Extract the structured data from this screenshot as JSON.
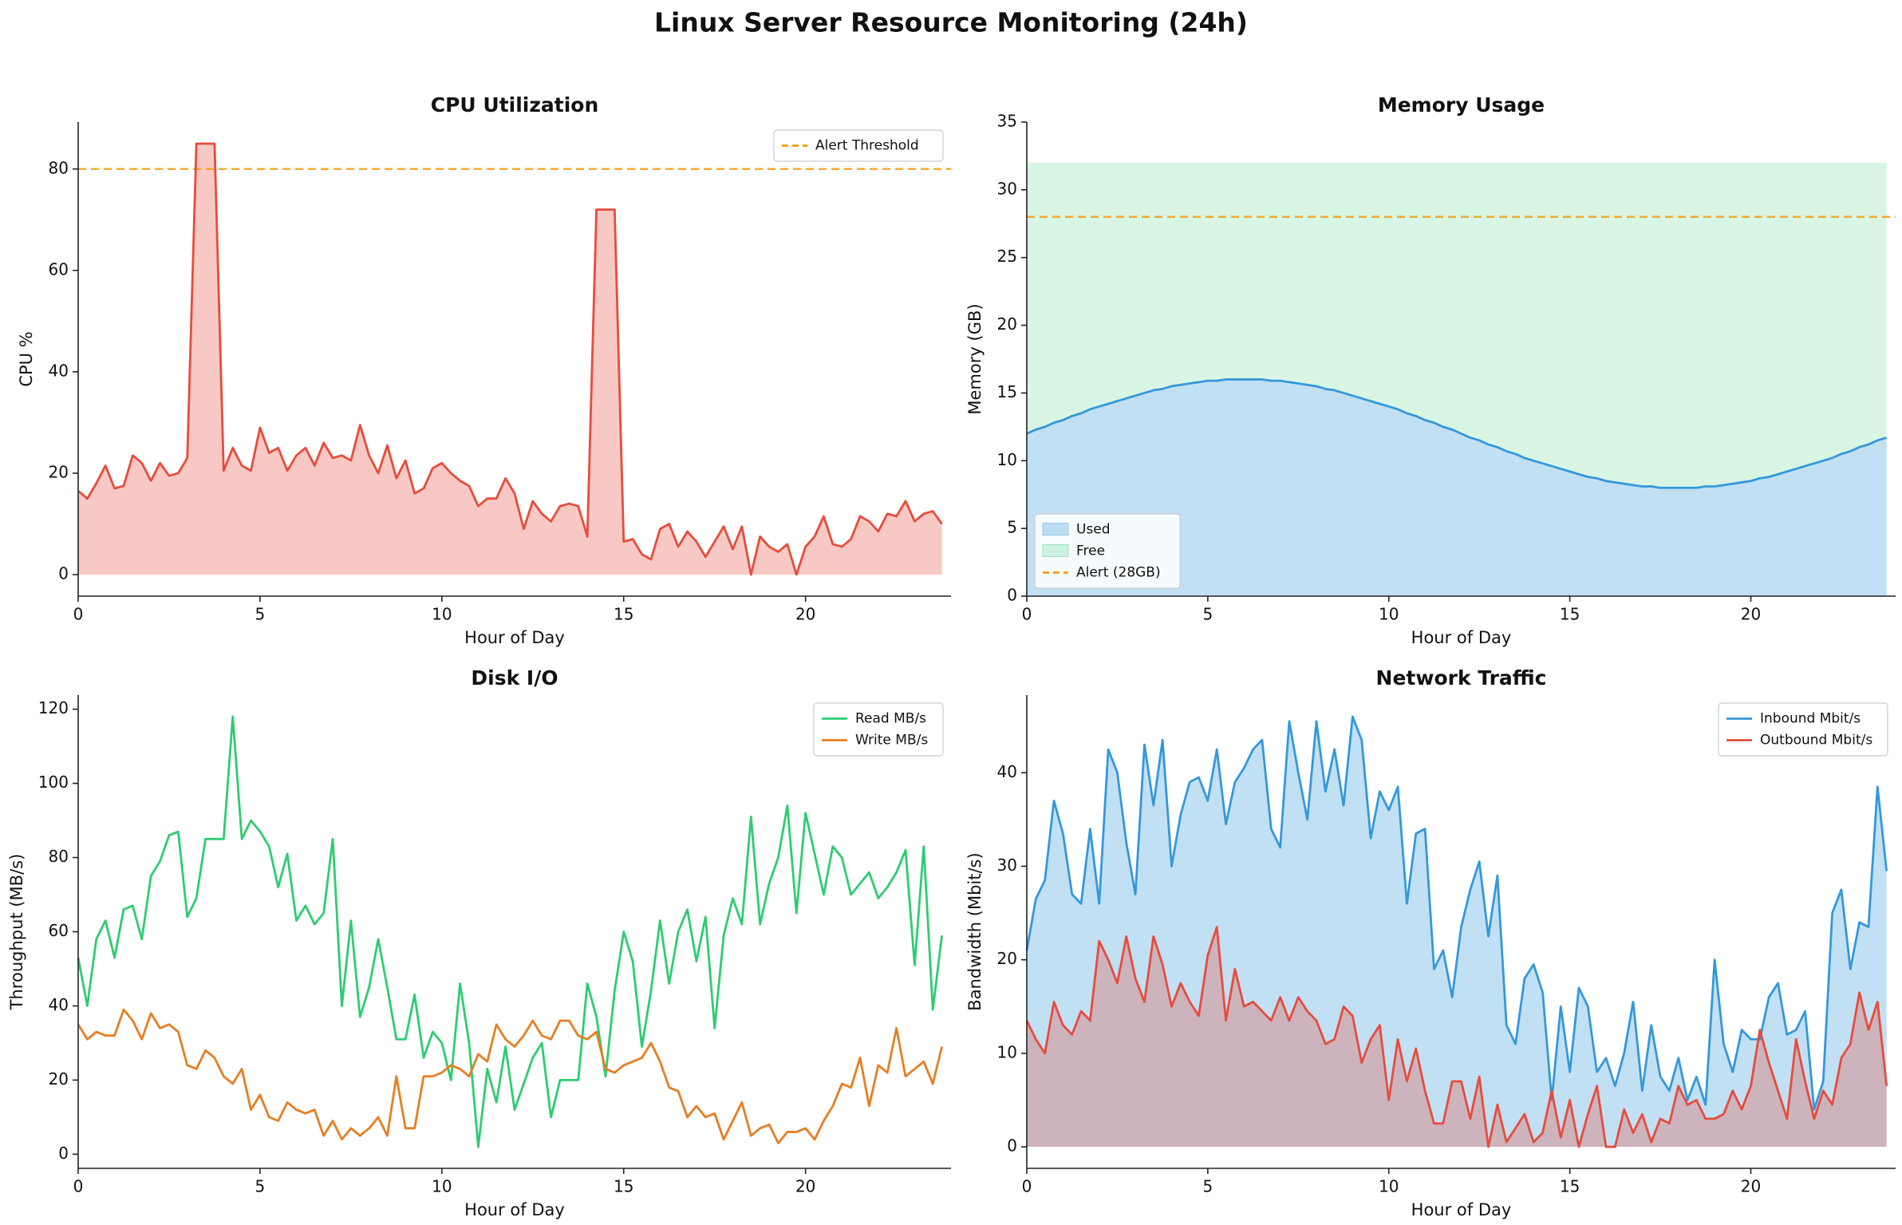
{
  "title": "Linux Server Resource Monitoring (24h)",
  "chart_data": [
    {
      "type": "line",
      "title": "CPU Utilization",
      "xlabel": "Hour of Day",
      "ylabel": "CPU %",
      "x": [
        0,
        0.25,
        0.5,
        0.75,
        1,
        1.25,
        1.5,
        1.75,
        2,
        2.25,
        2.5,
        2.75,
        3,
        3.25,
        3.5,
        3.75,
        4,
        4.25,
        4.5,
        4.75,
        5,
        5.25,
        5.5,
        5.75,
        6,
        6.25,
        6.5,
        6.75,
        7,
        7.25,
        7.5,
        7.75,
        8,
        8.25,
        8.5,
        8.75,
        9,
        9.25,
        9.5,
        9.75,
        10,
        10.25,
        10.5,
        10.75,
        11,
        11.25,
        11.5,
        11.75,
        12,
        12.25,
        12.5,
        12.75,
        13,
        13.25,
        13.5,
        13.75,
        14,
        14.25,
        14.5,
        14.75,
        15,
        15.25,
        15.5,
        15.75,
        16,
        16.25,
        16.5,
        16.75,
        17,
        17.25,
        17.5,
        17.75,
        18,
        18.25,
        18.5,
        18.75,
        19,
        19.25,
        19.5,
        19.75,
        20,
        20.25,
        20.5,
        20.75,
        21,
        21.25,
        21.5,
        21.75,
        22,
        22.25,
        22.5,
        22.75,
        23,
        23.25,
        23.5,
        23.75
      ],
      "series": [
        {
          "color": "#e74c3c",
          "fill": true,
          "values": [
            16.5,
            15,
            18,
            21.5,
            17,
            17.5,
            23.5,
            22,
            18.5,
            22,
            19.5,
            20,
            23,
            85,
            85,
            85,
            20.5,
            25,
            21.5,
            20.5,
            29,
            24,
            25,
            20.5,
            23.5,
            25,
            21.5,
            26,
            23,
            23.5,
            22.5,
            29.5,
            23.5,
            20,
            25.5,
            19,
            22.5,
            16,
            17,
            21,
            22,
            20,
            18.5,
            17.5,
            13.5,
            15,
            15,
            19,
            16,
            9,
            14.5,
            12,
            10.5,
            13.5,
            14,
            13.5,
            7.5,
            72,
            72,
            72,
            6.5,
            7,
            4,
            3,
            9,
            10,
            5.5,
            8.5,
            6.5,
            3.5,
            6.5,
            9.5,
            5,
            9.5,
            0,
            7.5,
            5.5,
            4.5,
            6,
            0,
            5.5,
            7.5,
            11.5,
            6,
            5.5,
            7,
            11.5,
            10.5,
            8.5,
            12,
            11.5,
            14.5,
            10.5,
            12,
            12.5,
            10
          ]
        }
      ],
      "hlines": [
        {
          "name": "Alert Threshold",
          "value": 80,
          "color": "#f39c12"
        }
      ],
      "xlim": [
        0,
        24
      ],
      "xticks": [
        0,
        5,
        10,
        15,
        20
      ],
      "ylim": [
        -4.25,
        89.25
      ],
      "yticks": [
        0,
        20,
        40,
        60,
        80
      ],
      "legend": "upper right"
    },
    {
      "type": "line",
      "title": "Memory Usage",
      "xlabel": "Hour of Day",
      "ylabel": "Memory (GB)",
      "x": [
        0,
        0.25,
        0.5,
        0.75,
        1,
        1.25,
        1.5,
        1.75,
        2,
        2.25,
        2.5,
        2.75,
        3,
        3.25,
        3.5,
        3.75,
        4,
        4.25,
        4.5,
        4.75,
        5,
        5.25,
        5.5,
        5.75,
        6,
        6.25,
        6.5,
        6.75,
        7,
        7.25,
        7.5,
        7.75,
        8,
        8.25,
        8.5,
        8.75,
        9,
        9.25,
        9.5,
        9.75,
        10,
        10.25,
        10.5,
        10.75,
        11,
        11.25,
        11.5,
        11.75,
        12,
        12.25,
        12.5,
        12.75,
        13,
        13.25,
        13.5,
        13.75,
        14,
        14.25,
        14.5,
        14.75,
        15,
        15.25,
        15.5,
        15.75,
        16,
        16.25,
        16.5,
        16.75,
        17,
        17.25,
        17.5,
        17.75,
        18,
        18.25,
        18.5,
        18.75,
        19,
        19.25,
        19.5,
        19.75,
        20,
        20.25,
        20.5,
        20.75,
        21,
        21.25,
        21.5,
        21.75,
        22,
        22.25,
        22.5,
        22.75,
        23,
        23.25,
        23.5,
        23.75
      ],
      "series": [
        {
          "name": "Used",
          "color": "#3498db",
          "fill": true,
          "legend_marker": "patch",
          "values": [
            12.0,
            12.3,
            12.5,
            12.8,
            13.0,
            13.3,
            13.5,
            13.8,
            14.0,
            14.2,
            14.4,
            14.6,
            14.8,
            15.0,
            15.2,
            15.3,
            15.5,
            15.6,
            15.7,
            15.8,
            15.9,
            15.9,
            16.0,
            16.0,
            16.0,
            16.0,
            16.0,
            15.9,
            15.9,
            15.8,
            15.7,
            15.6,
            15.5,
            15.3,
            15.2,
            15.0,
            14.8,
            14.6,
            14.4,
            14.2,
            14.0,
            13.8,
            13.5,
            13.3,
            13.0,
            12.8,
            12.5,
            12.3,
            12.0,
            11.7,
            11.5,
            11.2,
            11.0,
            10.7,
            10.5,
            10.2,
            10.0,
            9.8,
            9.6,
            9.4,
            9.2,
            9.0,
            8.8,
            8.7,
            8.5,
            8.4,
            8.3,
            8.2,
            8.1,
            8.1,
            8.0,
            8.0,
            8.0,
            8.0,
            8.0,
            8.1,
            8.1,
            8.2,
            8.3,
            8.4,
            8.5,
            8.7,
            8.8,
            9.0,
            9.2,
            9.4,
            9.6,
            9.8,
            10.0,
            10.2,
            10.5,
            10.7,
            11.0,
            11.2,
            11.5,
            11.7
          ]
        }
      ],
      "band": {
        "name": "Free",
        "color": "#2ecc71",
        "upper": 32
      },
      "hlines": [
        {
          "name": "Alert (28GB)",
          "value": 28,
          "color": "#f39c12"
        }
      ],
      "xlim": [
        0,
        24
      ],
      "xticks": [
        0,
        5,
        10,
        15,
        20
      ],
      "ylim": [
        0,
        35
      ],
      "yticks": [
        0,
        5,
        10,
        15,
        20,
        25,
        30,
        35
      ],
      "legend": "lower left"
    },
    {
      "type": "line",
      "title": "Disk I/O",
      "xlabel": "Hour of Day",
      "ylabel": "Throughput (MB/s)",
      "x": [
        0,
        0.25,
        0.5,
        0.75,
        1,
        1.25,
        1.5,
        1.75,
        2,
        2.25,
        2.5,
        2.75,
        3,
        3.25,
        3.5,
        3.75,
        4,
        4.25,
        4.5,
        4.75,
        5,
        5.25,
        5.5,
        5.75,
        6,
        6.25,
        6.5,
        6.75,
        7,
        7.25,
        7.5,
        7.75,
        8,
        8.25,
        8.5,
        8.75,
        9,
        9.25,
        9.5,
        9.75,
        10,
        10.25,
        10.5,
        10.75,
        11,
        11.25,
        11.5,
        11.75,
        12,
        12.25,
        12.5,
        12.75,
        13,
        13.25,
        13.5,
        13.75,
        14,
        14.25,
        14.5,
        14.75,
        15,
        15.25,
        15.5,
        15.75,
        16,
        16.25,
        16.5,
        16.75,
        17,
        17.25,
        17.5,
        17.75,
        18,
        18.25,
        18.5,
        18.75,
        19,
        19.25,
        19.5,
        19.75,
        20,
        20.25,
        20.5,
        20.75,
        21,
        21.25,
        21.5,
        21.75,
        22,
        22.25,
        22.5,
        22.75,
        23,
        23.25,
        23.5,
        23.75
      ],
      "series": [
        {
          "name": "Read MB/s",
          "color": "#2ecc71",
          "values": [
            53,
            40,
            58,
            63,
            53,
            66,
            67,
            58,
            75,
            79,
            86,
            87,
            64,
            69,
            85,
            85,
            85,
            118,
            85,
            90,
            87,
            83,
            72,
            81,
            63,
            67,
            62,
            65,
            85,
            40,
            63,
            37,
            45,
            58,
            45,
            31,
            31,
            43,
            26,
            33,
            30,
            20,
            46,
            30,
            2,
            23,
            14,
            29,
            12,
            19,
            26,
            30,
            10,
            20,
            20,
            20,
            46,
            37,
            21,
            44,
            60,
            52,
            29,
            44,
            63,
            46,
            60,
            66,
            52,
            64,
            34,
            59,
            69,
            62,
            91,
            62,
            73,
            80,
            94,
            65,
            92,
            81,
            70,
            83,
            80,
            70,
            73,
            76,
            69,
            72,
            76,
            82,
            51,
            83,
            39,
            59
          ]
        },
        {
          "name": "Write MB/s",
          "color": "#e67e22",
          "values": [
            35,
            31,
            33,
            32,
            32,
            39,
            36,
            31,
            38,
            34,
            35,
            33,
            24,
            23,
            28,
            26,
            21,
            19,
            23,
            12,
            16,
            10,
            9,
            14,
            12,
            11,
            12,
            5,
            9,
            4,
            7,
            5,
            7,
            10,
            5,
            21,
            7,
            7,
            21,
            21,
            22,
            24,
            23,
            21,
            27,
            25,
            35,
            31,
            29,
            32,
            36,
            32,
            31,
            36,
            36,
            32,
            31,
            33,
            23,
            22,
            24,
            25,
            26,
            30,
            25,
            18,
            17,
            10,
            13,
            10,
            11,
            4,
            9,
            14,
            5,
            7,
            8,
            3,
            6,
            6,
            7,
            4,
            9,
            13,
            19,
            18,
            26,
            13,
            24,
            22,
            34,
            21,
            23,
            25,
            19,
            29
          ]
        }
      ],
      "xlim": [
        0,
        24
      ],
      "xticks": [
        0,
        5,
        10,
        15,
        20
      ],
      "ylim": [
        -3.8,
        123.8
      ],
      "yticks": [
        0,
        20,
        40,
        60,
        80,
        100,
        120
      ],
      "legend": "upper right"
    },
    {
      "type": "line",
      "title": "Network Traffic",
      "xlabel": "Hour of Day",
      "ylabel": "Bandwidth (Mbit/s)",
      "x": [
        0,
        0.25,
        0.5,
        0.75,
        1,
        1.25,
        1.5,
        1.75,
        2,
        2.25,
        2.5,
        2.75,
        3,
        3.25,
        3.5,
        3.75,
        4,
        4.25,
        4.5,
        4.75,
        5,
        5.25,
        5.5,
        5.75,
        6,
        6.25,
        6.5,
        6.75,
        7,
        7.25,
        7.5,
        7.75,
        8,
        8.25,
        8.5,
        8.75,
        9,
        9.25,
        9.5,
        9.75,
        10,
        10.25,
        10.5,
        10.75,
        11,
        11.25,
        11.5,
        11.75,
        12,
        12.25,
        12.5,
        12.75,
        13,
        13.25,
        13.5,
        13.75,
        14,
        14.25,
        14.5,
        14.75,
        15,
        15.25,
        15.5,
        15.75,
        16,
        16.25,
        16.5,
        16.75,
        17,
        17.25,
        17.5,
        17.75,
        18,
        18.25,
        18.5,
        18.75,
        19,
        19.25,
        19.5,
        19.75,
        20,
        20.25,
        20.5,
        20.75,
        21,
        21.25,
        21.5,
        21.75,
        22,
        22.25,
        22.5,
        22.75,
        23,
        23.25,
        23.5,
        23.75
      ],
      "series": [
        {
          "name": "Inbound Mbit/s",
          "color": "#3498db",
          "fill": true,
          "values": [
            21,
            26.5,
            28.5,
            37,
            33.5,
            27,
            26,
            34,
            26,
            42.5,
            40,
            32.5,
            27,
            43,
            36.5,
            43.5,
            30,
            35.5,
            39,
            39.5,
            37,
            42.5,
            34.5,
            39,
            40.5,
            42.5,
            43.5,
            34,
            32,
            45.5,
            40,
            35,
            45.5,
            38,
            42.5,
            36.5,
            46,
            43.5,
            33,
            38,
            36,
            38.5,
            26,
            33.5,
            34,
            19,
            21,
            16,
            23.5,
            27.5,
            30.5,
            22.5,
            29,
            13,
            11,
            18,
            19.5,
            16.5,
            5,
            15,
            8,
            17,
            15,
            8,
            9.5,
            6.5,
            10,
            15.5,
            6,
            13,
            7.5,
            6,
            9.5,
            5,
            7.5,
            4.5,
            20,
            11,
            8,
            12.5,
            11.5,
            11.5,
            16,
            17.5,
            12,
            12.5,
            14.5,
            4,
            7,
            25,
            27.5,
            19,
            24,
            23.5,
            38.5,
            29.5
          ]
        },
        {
          "name": "Outbound Mbit/s",
          "color": "#e74c3c",
          "fill": true,
          "values": [
            13.5,
            11.5,
            10,
            15.5,
            13,
            12,
            14.5,
            13.5,
            22,
            20,
            17.5,
            22.5,
            18,
            15.5,
            22.5,
            19.5,
            15,
            17.5,
            15.5,
            14,
            20.5,
            23.5,
            13.5,
            19,
            15,
            15.5,
            14.5,
            13.5,
            16,
            13.5,
            16,
            14.5,
            13.5,
            11,
            11.5,
            15,
            14,
            9,
            11.5,
            13,
            5,
            11.5,
            7,
            10.5,
            6,
            2.5,
            2.5,
            7,
            7,
            3,
            7.5,
            0,
            4.5,
            0.5,
            2,
            3.5,
            0.5,
            1.5,
            6,
            1,
            5,
            0,
            3.5,
            6.5,
            0,
            0,
            4,
            1.5,
            3.5,
            0.5,
            3,
            2.5,
            6.5,
            4.5,
            5,
            3,
            3,
            3.5,
            6,
            4,
            6.5,
            12.5,
            9,
            6,
            3,
            11.5,
            7,
            3,
            6,
            4.5,
            9.5,
            11,
            16.5,
            12.5,
            15.5,
            6.5
          ]
        }
      ],
      "xlim": [
        0,
        24
      ],
      "xticks": [
        0,
        5,
        10,
        15,
        20
      ],
      "ylim": [
        -2.3,
        48.3
      ],
      "yticks": [
        0,
        10,
        20,
        30,
        40
      ],
      "legend": "upper right"
    }
  ]
}
